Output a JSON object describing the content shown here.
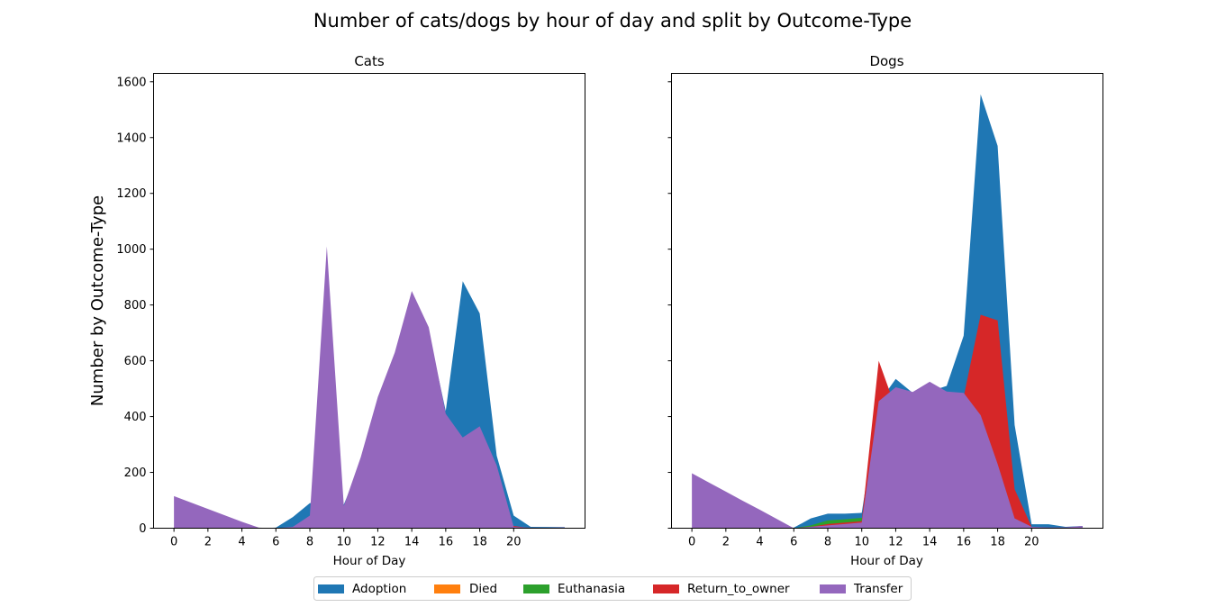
{
  "figure": {
    "suptitle": "Number of cats/dogs by hour of day and split by Outcome-Type",
    "ylabel": "Number by Outcome-Type",
    "legend_placement": "bottom-center"
  },
  "chart_data": [
    {
      "type": "area",
      "stacked": false,
      "title": "Cats",
      "xlabel": "Hour of Day",
      "ylabel": "Number by Outcome-Type",
      "xlim": [
        -1.2,
        24.2
      ],
      "ylim": [
        0,
        1630
      ],
      "xticks": [
        0,
        2,
        4,
        6,
        8,
        10,
        12,
        14,
        16,
        18,
        20
      ],
      "xtick_labels": [
        "0",
        "2",
        "4",
        "6",
        "8",
        "10",
        "12",
        "14",
        "16",
        "18",
        "20"
      ],
      "yticks": [
        0,
        200,
        400,
        600,
        800,
        1000,
        1200,
        1400,
        1600
      ],
      "ytick_labels": [
        "0",
        "200",
        "400",
        "600",
        "800",
        "1000",
        "1200",
        "1400",
        "1600"
      ],
      "grid": false,
      "series": [
        {
          "name": "Adoption",
          "color": "#1f77b4",
          "x": [
            0,
            5,
            6,
            7,
            8,
            9,
            10,
            11,
            12,
            13,
            14,
            15,
            16,
            17,
            18,
            19,
            20,
            21,
            23
          ],
          "y": [
            0,
            0,
            2,
            40,
            90,
            90,
            85,
            230,
            440,
            600,
            830,
            700,
            420,
            885,
            770,
            260,
            45,
            5,
            4
          ]
        },
        {
          "name": "Died",
          "color": "#ff7f0e",
          "x": [
            0,
            5,
            6,
            7,
            8,
            9,
            10,
            11,
            12,
            13,
            14,
            15,
            16,
            17,
            18,
            19,
            20,
            21,
            23
          ],
          "y": [
            2,
            1,
            0,
            1,
            1,
            2,
            2,
            2,
            3,
            3,
            3,
            3,
            3,
            3,
            3,
            3,
            1,
            0,
            0
          ]
        },
        {
          "name": "Euthanasia",
          "color": "#2ca02c",
          "x": [
            0,
            5,
            6,
            7,
            8,
            9,
            10,
            11,
            12,
            13,
            14,
            15,
            16,
            17,
            18,
            19,
            20,
            21,
            23
          ],
          "y": [
            2,
            1,
            0,
            3,
            10,
            15,
            12,
            15,
            15,
            15,
            15,
            15,
            15,
            12,
            12,
            8,
            4,
            0,
            0
          ]
        },
        {
          "name": "Return_to_owner",
          "color": "#d62728",
          "x": [
            0,
            5,
            6,
            7,
            8,
            9,
            10,
            11,
            12,
            13,
            14,
            15,
            16,
            17,
            18,
            19,
            20,
            21,
            23
          ],
          "y": [
            2,
            1,
            0,
            3,
            8,
            20,
            15,
            30,
            40,
            45,
            50,
            50,
            45,
            40,
            40,
            25,
            8,
            0,
            0
          ]
        },
        {
          "name": "Transfer",
          "color": "#9467bd",
          "x": [
            0,
            1,
            2,
            3,
            4,
            5,
            6,
            7,
            8,
            9,
            10,
            11,
            12,
            13,
            14,
            15,
            16,
            17,
            18,
            19,
            20,
            21,
            22,
            23
          ],
          "y": [
            115,
            92,
            69,
            46,
            23,
            2,
            0,
            5,
            45,
            1010,
            80,
            255,
            470,
            630,
            850,
            720,
            410,
            325,
            365,
            225,
            5,
            2,
            2,
            3
          ]
        }
      ]
    },
    {
      "type": "area",
      "stacked": false,
      "title": "Dogs",
      "xlabel": "Hour of Day",
      "ylim": [
        0,
        1630
      ],
      "xlim": [
        -1.2,
        24.2
      ],
      "xticks": [
        0,
        2,
        4,
        6,
        8,
        10,
        12,
        14,
        16,
        18,
        20
      ],
      "xtick_labels": [
        "0",
        "2",
        "4",
        "6",
        "8",
        "10",
        "12",
        "14",
        "16",
        "18",
        "20"
      ],
      "yticks": [
        0,
        200,
        400,
        600,
        800,
        1000,
        1200,
        1400,
        1600
      ],
      "grid": false,
      "series": [
        {
          "name": "Adoption",
          "color": "#1f77b4",
          "x": [
            0,
            5,
            6,
            7,
            8,
            9,
            10,
            11,
            12,
            13,
            14,
            15,
            16,
            17,
            18,
            19,
            20,
            21,
            22,
            23
          ],
          "y": [
            0,
            0,
            2,
            35,
            52,
            52,
            55,
            450,
            535,
            485,
            490,
            510,
            690,
            1555,
            1370,
            370,
            14,
            14,
            5,
            8
          ]
        },
        {
          "name": "Died",
          "color": "#ff7f0e",
          "x": [
            0,
            5,
            6,
            7,
            8,
            9,
            10,
            11,
            12,
            13,
            14,
            15,
            16,
            17,
            18,
            19,
            20,
            21,
            22,
            23
          ],
          "y": [
            1,
            1,
            0,
            1,
            1,
            1,
            1,
            1,
            2,
            2,
            2,
            2,
            2,
            2,
            2,
            1,
            0,
            0,
            0,
            0
          ]
        },
        {
          "name": "Euthanasia",
          "color": "#2ca02c",
          "x": [
            0,
            5,
            6,
            7,
            8,
            9,
            10,
            11,
            12,
            13,
            14,
            15,
            16,
            17,
            18,
            19,
            20,
            21,
            22,
            23
          ],
          "y": [
            0,
            0,
            0,
            10,
            28,
            32,
            37,
            40,
            40,
            38,
            38,
            36,
            34,
            28,
            22,
            10,
            2,
            0,
            0,
            0
          ]
        },
        {
          "name": "Return_to_owner",
          "color": "#d62728",
          "x": [
            0,
            5,
            6,
            7,
            8,
            9,
            10,
            11,
            12,
            13,
            14,
            15,
            16,
            17,
            18,
            19,
            20,
            21,
            22,
            23
          ],
          "y": [
            0,
            0,
            0,
            5,
            15,
            20,
            25,
            600,
            430,
            470,
            500,
            470,
            470,
            765,
            745,
            140,
            5,
            0,
            0,
            0
          ]
        },
        {
          "name": "Transfer",
          "color": "#9467bd",
          "x": [
            0,
            1,
            2,
            3,
            4,
            5,
            6,
            7,
            8,
            9,
            10,
            11,
            12,
            13,
            14,
            15,
            16,
            17,
            18,
            19,
            20,
            21,
            22,
            23
          ],
          "y": [
            197,
            164,
            131,
            98,
            66,
            33,
            0,
            5,
            10,
            15,
            20,
            455,
            505,
            488,
            525,
            490,
            485,
            405,
            230,
            35,
            5,
            3,
            3,
            8
          ]
        }
      ]
    }
  ],
  "legend": [
    {
      "label": "Adoption",
      "color": "#1f77b4"
    },
    {
      "label": "Died",
      "color": "#ff7f0e"
    },
    {
      "label": "Euthanasia",
      "color": "#2ca02c"
    },
    {
      "label": "Return_to_owner",
      "color": "#d62728"
    },
    {
      "label": "Transfer",
      "color": "#9467bd"
    }
  ]
}
